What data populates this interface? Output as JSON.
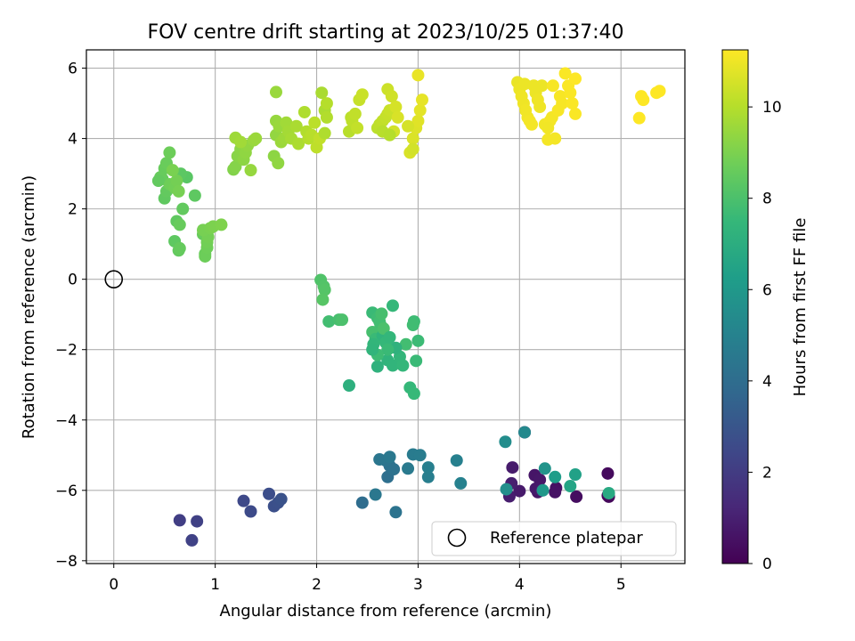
{
  "chart_data": {
    "type": "scatter",
    "title": "FOV centre drift starting at 2023/10/25 01:37:40",
    "xlabel": "Angular distance from reference (arcmin)",
    "ylabel": "Rotation from reference (arcmin)",
    "xlim": [
      -0.27,
      5.63
    ],
    "ylim": [
      -8.08,
      6.52
    ],
    "xticks": [
      0,
      1,
      2,
      3,
      4,
      5
    ],
    "xtick_labels": [
      "0",
      "1",
      "2",
      "3",
      "4",
      "5"
    ],
    "yticks": [
      -8,
      -6,
      -4,
      -2,
      0,
      2,
      4,
      6
    ],
    "ytick_labels": [
      "−8",
      "−6",
      "−4",
      "−2",
      "0",
      "2",
      "4",
      "6"
    ],
    "grid": true,
    "legend": {
      "placement": "lower-right",
      "entries": [
        "Reference platepar"
      ]
    },
    "reference_point": {
      "x": 0,
      "y": 0,
      "label": "Reference platepar"
    },
    "colorbar": {
      "label": "Hours from first FF file",
      "colormap": "viridis",
      "range": [
        0,
        11.25
      ],
      "ticks": [
        0,
        2,
        4,
        6,
        8,
        10
      ],
      "tick_labels": [
        "0",
        "2",
        "4",
        "6",
        "8",
        "10"
      ],
      "colors": [
        "#440154",
        "#482878",
        "#3e4989",
        "#31688e",
        "#26828e",
        "#1f9e89",
        "#35b779",
        "#6ece58",
        "#b5de2b",
        "#fde725"
      ]
    },
    "points": [
      [
        4.87,
        -6.15,
        0.2
      ],
      [
        4.88,
        -6.18,
        0.25
      ],
      [
        4.87,
        -5.52,
        0.3
      ],
      [
        4.56,
        -6.18,
        0.4
      ],
      [
        4.36,
        -5.93,
        0.5
      ],
      [
        4.35,
        -6.05,
        0.55
      ],
      [
        4.18,
        -6.05,
        0.6
      ],
      [
        4.15,
        -5.57,
        0.65
      ],
      [
        4.2,
        -5.7,
        0.7
      ],
      [
        4.16,
        -5.95,
        0.75
      ],
      [
        4.0,
        -6.02,
        0.8
      ],
      [
        3.93,
        -5.35,
        0.85
      ],
      [
        3.9,
        -6.17,
        0.9
      ],
      [
        3.92,
        -5.8,
        0.95
      ],
      [
        4.05,
        -4.35,
        0.3
      ],
      [
        4.22,
        -6.0,
        1.0
      ],
      [
        0.65,
        -6.85,
        2.1
      ],
      [
        0.82,
        -6.88,
        2.2
      ],
      [
        0.77,
        -7.42,
        2.25
      ],
      [
        1.28,
        -6.3,
        2.5
      ],
      [
        1.35,
        -6.6,
        2.55
      ],
      [
        1.53,
        -6.1,
        2.7
      ],
      [
        1.58,
        -6.45,
        2.75
      ],
      [
        1.62,
        -6.35,
        2.8
      ],
      [
        1.65,
        -6.25,
        2.85
      ],
      [
        2.45,
        -6.35,
        4.0
      ],
      [
        2.7,
        -5.62,
        4.1
      ],
      [
        2.72,
        -5.3,
        4.2
      ],
      [
        2.76,
        -5.4,
        4.25
      ],
      [
        2.78,
        -6.62,
        4.3
      ],
      [
        2.68,
        -5.15,
        4.35
      ],
      [
        2.62,
        -5.12,
        4.4
      ],
      [
        2.58,
        -6.12,
        4.45
      ],
      [
        2.72,
        -5.05,
        4.5
      ],
      [
        2.9,
        -5.38,
        4.6
      ],
      [
        2.95,
        -4.98,
        4.65
      ],
      [
        3.02,
        -5.0,
        4.7
      ],
      [
        3.1,
        -5.62,
        4.8
      ],
      [
        3.1,
        -5.35,
        4.85
      ],
      [
        3.38,
        -5.15,
        4.9
      ],
      [
        3.42,
        -5.8,
        4.95
      ],
      [
        4.05,
        -4.35,
        5.3
      ],
      [
        3.86,
        -4.62,
        5.5
      ],
      [
        3.87,
        -5.97,
        5.6
      ],
      [
        4.25,
        -5.38,
        5.8
      ],
      [
        4.23,
        -6.0,
        6.0
      ],
      [
        4.35,
        -5.62,
        6.2
      ],
      [
        4.55,
        -5.55,
        6.4
      ],
      [
        4.5,
        -5.88,
        6.6
      ],
      [
        4.88,
        -6.08,
        6.8
      ],
      [
        2.32,
        -3.02,
        7.1
      ],
      [
        2.6,
        -2.48,
        7.2
      ],
      [
        2.7,
        -2.3,
        7.3
      ],
      [
        2.75,
        -2.45,
        7.35
      ],
      [
        2.82,
        -2.2,
        7.4
      ],
      [
        2.85,
        -2.45,
        7.45
      ],
      [
        2.92,
        -3.08,
        7.5
      ],
      [
        2.96,
        -3.25,
        7.55
      ],
      [
        2.98,
        -2.32,
        7.6
      ],
      [
        3.0,
        -1.75,
        7.65
      ],
      [
        2.96,
        -1.2,
        7.7
      ],
      [
        2.95,
        -1.3,
        7.75
      ],
      [
        2.88,
        -1.85,
        7.8
      ],
      [
        2.78,
        -1.95,
        7.2
      ],
      [
        2.75,
        -0.75,
        7.5
      ],
      [
        2.55,
        -0.95,
        7.6
      ],
      [
        2.6,
        -1.1,
        7.7
      ],
      [
        2.63,
        -1.3,
        7.8
      ],
      [
        2.55,
        -1.5,
        7.9
      ],
      [
        2.58,
        -1.7,
        7.6
      ],
      [
        2.56,
        -1.85,
        7.4
      ],
      [
        2.65,
        -1.6,
        7.3
      ],
      [
        2.68,
        -1.8,
        7.5
      ],
      [
        2.7,
        -2.0,
        7.6
      ],
      [
        2.6,
        -2.15,
        7.7
      ],
      [
        2.62,
        -1.2,
        7.8
      ],
      [
        2.64,
        -0.98,
        7.9
      ],
      [
        2.66,
        -1.4,
        8.0
      ],
      [
        2.55,
        -2.0,
        7.35
      ],
      [
        2.72,
        -1.65,
        7.45
      ],
      [
        2.12,
        -1.2,
        7.8
      ],
      [
        2.22,
        -1.15,
        7.9
      ],
      [
        2.25,
        -1.15,
        8.0
      ],
      [
        2.04,
        -0.02,
        8.1
      ],
      [
        2.07,
        -0.2,
        8.15
      ],
      [
        2.08,
        -0.3,
        8.2
      ],
      [
        2.06,
        -0.58,
        8.25
      ],
      [
        0.6,
        1.08,
        8.4
      ],
      [
        0.62,
        1.65,
        8.45
      ],
      [
        0.64,
        0.82,
        8.5
      ],
      [
        0.65,
        0.88,
        8.55
      ],
      [
        0.65,
        1.55,
        8.6
      ],
      [
        0.88,
        1.28,
        8.6
      ],
      [
        0.9,
        0.72,
        8.65
      ],
      [
        0.9,
        0.65,
        8.7
      ],
      [
        0.92,
        0.9,
        8.75
      ],
      [
        0.92,
        1.05,
        8.8
      ],
      [
        0.93,
        1.2,
        8.85
      ],
      [
        0.88,
        1.4,
        8.9
      ],
      [
        0.95,
        1.45,
        8.95
      ],
      [
        0.98,
        1.5,
        9.0
      ],
      [
        1.06,
        1.55,
        9.05
      ],
      [
        0.68,
        2.0,
        8.5
      ],
      [
        0.8,
        2.38,
        8.4
      ],
      [
        0.72,
        2.9,
        8.3
      ],
      [
        0.66,
        3.0,
        8.35
      ],
      [
        0.5,
        2.3,
        8.45
      ],
      [
        0.52,
        2.5,
        8.5
      ],
      [
        0.48,
        2.85,
        8.55
      ],
      [
        0.5,
        3.15,
        8.6
      ],
      [
        0.52,
        3.3,
        8.65
      ],
      [
        0.55,
        3.6,
        8.7
      ],
      [
        0.55,
        2.7,
        8.75
      ],
      [
        0.6,
        2.6,
        8.8
      ],
      [
        0.62,
        2.8,
        8.85
      ],
      [
        0.64,
        2.5,
        8.9
      ],
      [
        0.58,
        3.1,
        8.95
      ],
      [
        0.46,
        2.9,
        8.6
      ],
      [
        0.44,
        2.8,
        8.5
      ],
      [
        1.18,
        3.12,
        9.1
      ],
      [
        1.2,
        3.2,
        9.15
      ],
      [
        1.22,
        3.5,
        9.2
      ],
      [
        1.25,
        3.7,
        9.25
      ],
      [
        1.28,
        3.4,
        9.3
      ],
      [
        1.3,
        3.6,
        9.35
      ],
      [
        1.32,
        3.8,
        9.4
      ],
      [
        1.35,
        3.1,
        9.45
      ],
      [
        1.38,
        3.95,
        9.5
      ],
      [
        1.4,
        4.0,
        9.55
      ],
      [
        1.2,
        4.02,
        9.6
      ],
      [
        1.25,
        3.9,
        9.65
      ],
      [
        1.58,
        3.5,
        9.3
      ],
      [
        1.62,
        3.3,
        9.35
      ],
      [
        1.6,
        4.1,
        9.4
      ],
      [
        1.6,
        4.5,
        9.45
      ],
      [
        1.63,
        4.35,
        9.5
      ],
      [
        1.65,
        3.9,
        9.55
      ],
      [
        1.68,
        4.0,
        9.6
      ],
      [
        1.7,
        4.45,
        9.65
      ],
      [
        1.72,
        4.2,
        9.7
      ],
      [
        1.75,
        4.0,
        9.75
      ],
      [
        1.8,
        4.35,
        9.8
      ],
      [
        1.82,
        3.85,
        9.85
      ],
      [
        1.88,
        4.75,
        9.9
      ],
      [
        1.9,
        4.2,
        9.95
      ],
      [
        1.92,
        4.0,
        10.0
      ],
      [
        1.95,
        4.1,
        10.05
      ],
      [
        1.98,
        4.45,
        10.1
      ],
      [
        2.0,
        3.75,
        10.15
      ],
      [
        2.03,
        4.0,
        10.2
      ],
      [
        1.6,
        5.32,
        9.5
      ],
      [
        2.05,
        5.3,
        9.8
      ],
      [
        2.08,
        4.8,
        9.85
      ],
      [
        2.08,
        4.15,
        9.9
      ],
      [
        2.1,
        4.6,
        9.95
      ],
      [
        2.1,
        5.0,
        10.0
      ],
      [
        2.32,
        4.2,
        10.05
      ],
      [
        2.34,
        4.6,
        10.1
      ],
      [
        2.35,
        4.5,
        10.15
      ],
      [
        2.38,
        4.7,
        10.2
      ],
      [
        2.4,
        4.3,
        10.25
      ],
      [
        2.42,
        5.1,
        10.3
      ],
      [
        2.45,
        5.25,
        10.35
      ],
      [
        2.6,
        4.3,
        10.1
      ],
      [
        2.62,
        4.4,
        10.15
      ],
      [
        2.65,
        4.5,
        10.2
      ],
      [
        2.68,
        4.6,
        10.25
      ],
      [
        2.7,
        4.7,
        10.3
      ],
      [
        2.72,
        4.8,
        10.35
      ],
      [
        2.7,
        5.4,
        10.4
      ],
      [
        2.74,
        5.2,
        10.45
      ],
      [
        2.76,
        4.2,
        10.5
      ],
      [
        2.78,
        4.9,
        10.55
      ],
      [
        2.8,
        4.6,
        10.6
      ],
      [
        2.65,
        4.2,
        10.05
      ],
      [
        2.72,
        4.1,
        10.0
      ],
      [
        2.92,
        3.6,
        10.6
      ],
      [
        2.95,
        4.0,
        10.65
      ],
      [
        2.98,
        4.3,
        10.7
      ],
      [
        3.0,
        4.5,
        10.75
      ],
      [
        3.02,
        4.8,
        10.8
      ],
      [
        3.04,
        5.1,
        10.85
      ],
      [
        3.0,
        5.8,
        10.9
      ],
      [
        2.95,
        3.7,
        10.5
      ],
      [
        2.9,
        4.35,
        10.55
      ],
      [
        3.98,
        5.6,
        10.9
      ],
      [
        4.0,
        5.4,
        10.95
      ],
      [
        4.02,
        5.2,
        11.0
      ],
      [
        4.04,
        5.0,
        11.0
      ],
      [
        4.06,
        4.8,
        11.05
      ],
      [
        4.08,
        4.6,
        11.05
      ],
      [
        4.1,
        4.5,
        11.1
      ],
      [
        4.12,
        4.4,
        11.1
      ],
      [
        4.14,
        5.5,
        10.95
      ],
      [
        4.16,
        5.3,
        10.95
      ],
      [
        4.18,
        5.1,
        11.0
      ],
      [
        4.2,
        4.9,
        11.0
      ],
      [
        4.22,
        5.5,
        10.95
      ],
      [
        4.25,
        4.4,
        11.05
      ],
      [
        4.28,
        3.97,
        11.1
      ],
      [
        4.32,
        4.6,
        11.1
      ],
      [
        4.35,
        4.0,
        11.1
      ],
      [
        4.38,
        4.8,
        11.15
      ],
      [
        4.4,
        5.2,
        11.15
      ],
      [
        4.42,
        5.0,
        11.15
      ],
      [
        4.45,
        5.85,
        11.2
      ],
      [
        4.48,
        5.5,
        11.2
      ],
      [
        4.5,
        5.3,
        11.2
      ],
      [
        4.52,
        5.0,
        11.2
      ],
      [
        4.55,
        4.7,
        11.2
      ],
      [
        4.55,
        5.7,
        11.25
      ],
      [
        4.3,
        4.5,
        11.1
      ],
      [
        4.33,
        5.5,
        11.15
      ],
      [
        4.28,
        4.3,
        11.05
      ],
      [
        4.05,
        5.55,
        10.95
      ],
      [
        5.18,
        4.58,
        11.25
      ],
      [
        5.2,
        5.2,
        11.25
      ],
      [
        5.22,
        5.1,
        11.25
      ],
      [
        5.35,
        5.3,
        11.25
      ],
      [
        5.38,
        5.35,
        11.25
      ]
    ]
  }
}
